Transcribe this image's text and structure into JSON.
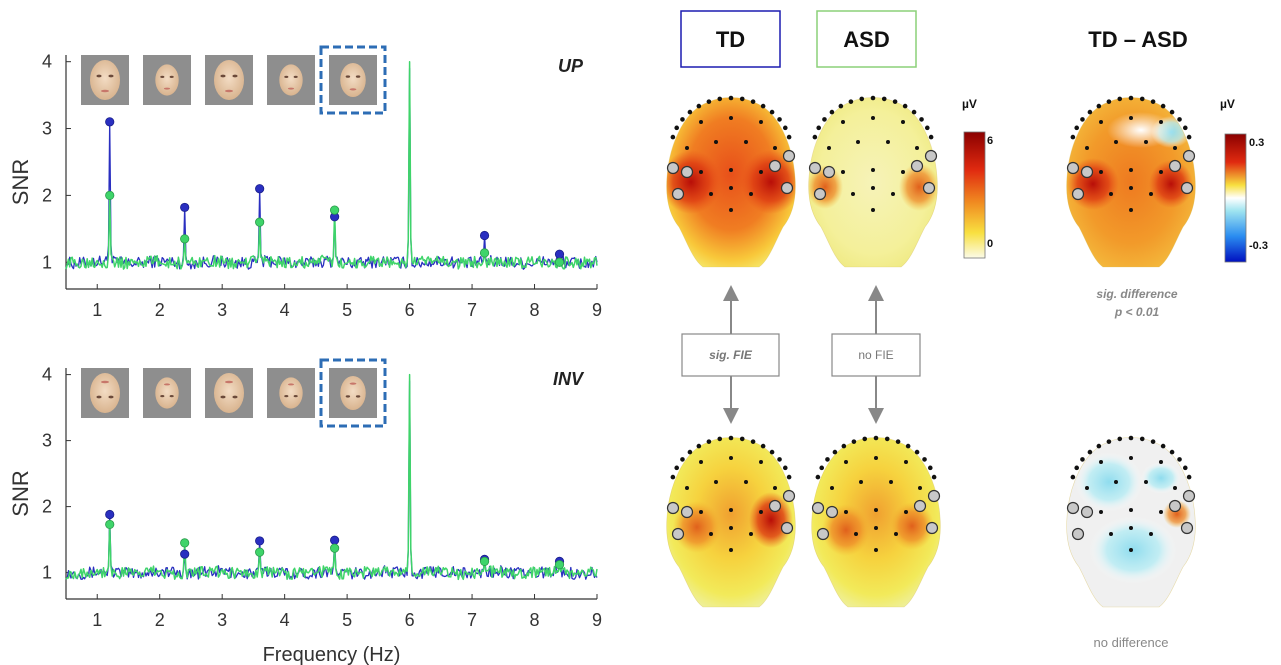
{
  "chart_data": [
    {
      "id": "up",
      "type": "line",
      "panel_label": "UP",
      "xlabel": "",
      "ylabel": "SNR",
      "xlim": [
        0.5,
        9
      ],
      "ylim": [
        0.6,
        4.1
      ],
      "xticks": [
        "1",
        "2",
        "3",
        "4",
        "5",
        "6",
        "7",
        "8",
        "9"
      ],
      "yticks": [
        "1",
        "2",
        "3",
        "4"
      ],
      "grid": false,
      "face_thumbnail_count": 5,
      "highlighted_thumbnail_index": 4,
      "noise_baseline": 1.0,
      "series": [
        {
          "color": "#2a2fc0",
          "peaks": [
            [
              1.2,
              3.1
            ],
            [
              2.4,
              1.82
            ],
            [
              3.6,
              2.1
            ],
            [
              4.8,
              1.68
            ],
            [
              6.0,
              3.9
            ],
            [
              7.2,
              1.4
            ],
            [
              8.4,
              1.12
            ]
          ]
        },
        {
          "color": "#3fd46a",
          "peaks": [
            [
              1.2,
              2.0
            ],
            [
              2.4,
              1.35
            ],
            [
              3.6,
              1.6
            ],
            [
              4.8,
              1.78
            ],
            [
              6.0,
              4.0
            ],
            [
              7.2,
              1.14
            ],
            [
              8.4,
              1.0
            ]
          ]
        }
      ],
      "marker_frequencies": [
        1.2,
        2.4,
        3.6,
        4.8,
        7.2,
        8.4
      ]
    },
    {
      "id": "inv",
      "type": "line",
      "panel_label": "INV",
      "xlabel": "Frequency (Hz)",
      "ylabel": "SNR",
      "xlim": [
        0.5,
        9
      ],
      "ylim": [
        0.6,
        4.1
      ],
      "xticks": [
        "1",
        "2",
        "3",
        "4",
        "5",
        "6",
        "7",
        "8",
        "9"
      ],
      "yticks": [
        "1",
        "2",
        "3",
        "4"
      ],
      "grid": false,
      "face_thumbnail_count": 5,
      "highlighted_thumbnail_index": 4,
      "noise_baseline": 1.0,
      "series": [
        {
          "color": "#2a2fc0",
          "peaks": [
            [
              1.2,
              1.88
            ],
            [
              2.4,
              1.28
            ],
            [
              3.6,
              1.48
            ],
            [
              4.8,
              1.49
            ],
            [
              6.0,
              3.9
            ],
            [
              7.2,
              1.2
            ],
            [
              8.4,
              1.17
            ]
          ]
        },
        {
          "color": "#3fd46a",
          "peaks": [
            [
              1.2,
              1.73
            ],
            [
              2.4,
              1.45
            ],
            [
              3.6,
              1.31
            ],
            [
              4.8,
              1.37
            ],
            [
              6.0,
              4.0
            ],
            [
              7.2,
              1.17
            ],
            [
              8.4,
              1.12
            ]
          ]
        }
      ],
      "marker_frequencies": [
        1.2,
        2.4,
        3.6,
        4.8,
        7.2,
        8.4
      ]
    }
  ],
  "topo": {
    "groups": [
      {
        "label": "TD",
        "box_color": "#1c1cb0"
      },
      {
        "label": "ASD",
        "box_color": "#8bd078"
      },
      {
        "label": "TD – ASD"
      }
    ],
    "scale_unit": "µV",
    "scale_main": {
      "max": "6",
      "min": "0"
    },
    "scale_diff": {
      "max": "0.3",
      "min": "-0.3"
    },
    "arrow_labels": {
      "td": "sig. FIE",
      "asd": "no FIE"
    },
    "diff_notes": {
      "up_line1": "sig. difference",
      "up_line2": "p < 0.01",
      "inv": "no difference"
    },
    "colors": {
      "dark_red": "#8b0000",
      "red": "#e02a10",
      "orange": "#f08820",
      "yellow": "#f8e040",
      "pale": "#f8f6cc",
      "cyan": "#9fe4f0",
      "blue": "#1020d0",
      "grey_electrode": "#c8c8c8"
    }
  }
}
